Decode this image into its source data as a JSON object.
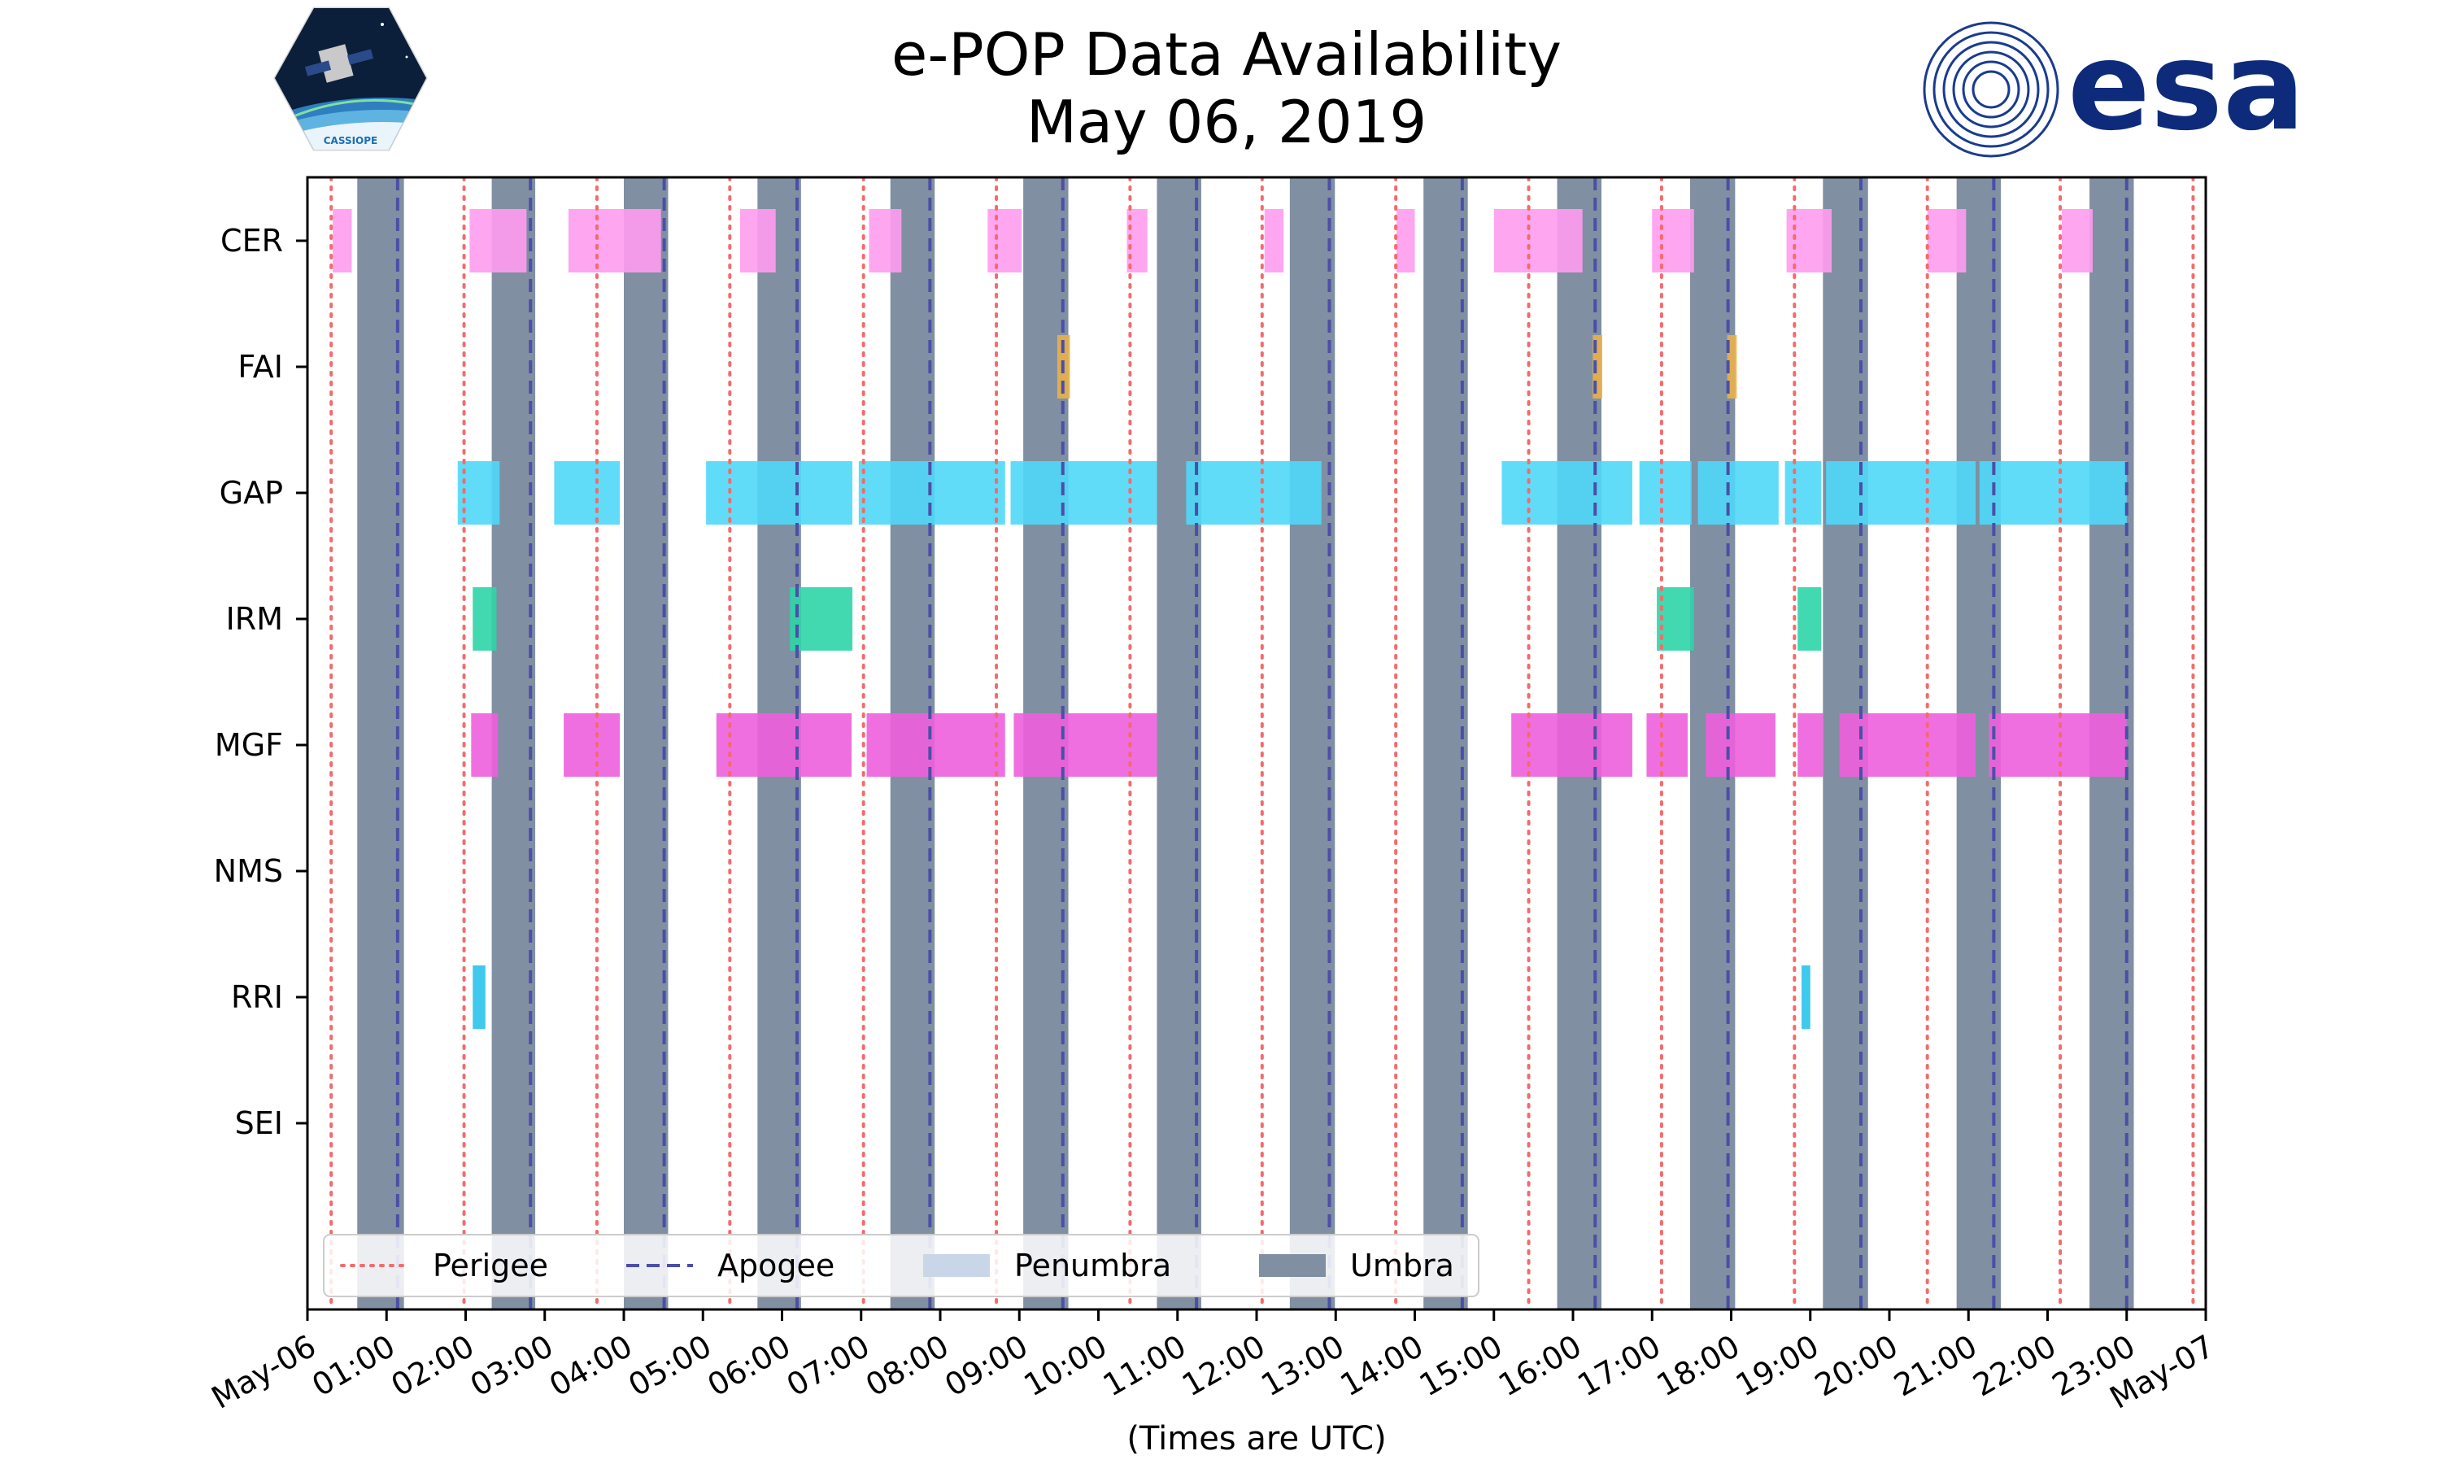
{
  "logos": {
    "mission_caption": "CASSIOPE",
    "agency_wordmark": "esa"
  },
  "colors": {
    "CER": "#ff9cf0",
    "FAI": "#e9b04a",
    "GAP": "#4fd8f8",
    "IRM": "#2dd4a7",
    "MGF": "#ee5fdd",
    "RRI": "#2ac3ea",
    "penumbra": "#c9d6e8",
    "umbra": "#808fa2",
    "perigee": "#f36b6b",
    "apogee": "#4b4fa6"
  },
  "chart_data": {
    "type": "timeline",
    "title": "e-POP Data Availability",
    "subtitle": "May 06, 2019",
    "xlabel": "(Times are UTC)",
    "x_unit": "hours UTC",
    "xlim": [
      0,
      24
    ],
    "x_ticks": [
      {
        "value": 0,
        "label": "May-06"
      },
      {
        "value": 1,
        "label": "01:00"
      },
      {
        "value": 2,
        "label": "02:00"
      },
      {
        "value": 3,
        "label": "03:00"
      },
      {
        "value": 4,
        "label": "04:00"
      },
      {
        "value": 5,
        "label": "05:00"
      },
      {
        "value": 6,
        "label": "06:00"
      },
      {
        "value": 7,
        "label": "07:00"
      },
      {
        "value": 8,
        "label": "08:00"
      },
      {
        "value": 9,
        "label": "09:00"
      },
      {
        "value": 10,
        "label": "10:00"
      },
      {
        "value": 11,
        "label": "11:00"
      },
      {
        "value": 12,
        "label": "12:00"
      },
      {
        "value": 13,
        "label": "13:00"
      },
      {
        "value": 14,
        "label": "14:00"
      },
      {
        "value": 15,
        "label": "15:00"
      },
      {
        "value": 16,
        "label": "16:00"
      },
      {
        "value": 17,
        "label": "17:00"
      },
      {
        "value": 18,
        "label": "18:00"
      },
      {
        "value": 19,
        "label": "19:00"
      },
      {
        "value": 20,
        "label": "20:00"
      },
      {
        "value": 21,
        "label": "21:00"
      },
      {
        "value": 22,
        "label": "22:00"
      },
      {
        "value": 23,
        "label": "23:00"
      },
      {
        "value": 24,
        "label": "May-07"
      }
    ],
    "instruments": [
      "CER",
      "FAI",
      "GAP",
      "IRM",
      "MGF",
      "NMS",
      "RRI",
      "SEI"
    ],
    "series": [
      {
        "name": "CER",
        "intervals": [
          [
            0.32,
            0.56
          ],
          [
            2.05,
            2.77
          ],
          [
            3.3,
            4.47
          ],
          [
            5.47,
            5.92
          ],
          [
            7.1,
            7.51
          ],
          [
            8.6,
            9.03
          ],
          [
            10.36,
            10.62
          ],
          [
            12.1,
            12.34
          ],
          [
            13.77,
            14.0
          ],
          [
            15.0,
            16.12
          ],
          [
            17.0,
            17.53
          ],
          [
            18.7,
            19.27
          ],
          [
            20.48,
            20.97
          ],
          [
            22.18,
            22.57
          ]
        ]
      },
      {
        "name": "FAI",
        "intervals": [
          [
            9.48,
            9.64
          ],
          [
            16.25,
            16.37
          ],
          [
            17.95,
            18.07
          ]
        ]
      },
      {
        "name": "GAP",
        "intervals": [
          [
            1.9,
            2.43
          ],
          [
            3.12,
            3.95
          ],
          [
            5.04,
            6.89
          ],
          [
            6.97,
            8.82
          ],
          [
            8.89,
            10.74
          ],
          [
            11.11,
            12.82
          ],
          [
            15.1,
            16.75
          ],
          [
            16.84,
            17.5
          ],
          [
            17.58,
            18.6
          ],
          [
            18.68,
            19.14
          ],
          [
            19.2,
            21.09
          ],
          [
            21.14,
            23.0
          ]
        ]
      },
      {
        "name": "IRM",
        "intervals": [
          [
            2.09,
            2.39
          ],
          [
            6.1,
            6.89
          ],
          [
            17.06,
            17.53
          ],
          [
            18.84,
            19.14
          ]
        ]
      },
      {
        "name": "MGF",
        "intervals": [
          [
            2.07,
            2.41
          ],
          [
            3.24,
            3.95
          ],
          [
            5.17,
            6.88
          ],
          [
            7.07,
            8.82
          ],
          [
            8.93,
            10.74
          ],
          [
            15.22,
            16.75
          ],
          [
            16.93,
            17.45
          ],
          [
            17.68,
            18.56
          ],
          [
            18.84,
            19.16
          ],
          [
            19.37,
            21.09
          ],
          [
            21.26,
            23.0
          ]
        ]
      },
      {
        "name": "NMS",
        "intervals": []
      },
      {
        "name": "RRI",
        "intervals": [
          [
            2.09,
            2.25
          ],
          [
            18.89,
            19.0
          ]
        ]
      },
      {
        "name": "SEI",
        "intervals": []
      }
    ],
    "umbra": [
      [
        0.63,
        1.22
      ],
      [
        2.33,
        2.88
      ],
      [
        4.0,
        4.56
      ],
      [
        5.69,
        6.24
      ],
      [
        7.37,
        7.93
      ],
      [
        9.05,
        9.62
      ],
      [
        10.74,
        11.3
      ],
      [
        12.42,
        12.99
      ],
      [
        14.11,
        14.67
      ],
      [
        15.8,
        16.36
      ],
      [
        17.48,
        18.05
      ],
      [
        19.16,
        19.73
      ],
      [
        20.85,
        21.41
      ],
      [
        22.53,
        23.09
      ]
    ],
    "perigee": [
      0.3,
      1.98,
      3.66,
      5.34,
      7.03,
      8.71,
      10.4,
      12.07,
      13.76,
      15.44,
      17.12,
      18.8,
      20.48,
      22.16,
      23.84
    ],
    "apogee": [
      1.14,
      2.82,
      4.51,
      6.19,
      7.87,
      9.55,
      11.24,
      12.92,
      14.6,
      16.28,
      17.96,
      19.64,
      21.32,
      23.0
    ],
    "legend": {
      "position": "lower-left",
      "entries": [
        {
          "label": "Perigee",
          "style": "dotted-line",
          "color_key": "perigee"
        },
        {
          "label": "Apogee",
          "style": "dashed-line",
          "color_key": "apogee"
        },
        {
          "label": "Penumbra",
          "style": "patch",
          "color_key": "penumbra"
        },
        {
          "label": "Umbra",
          "style": "patch",
          "color_key": "umbra"
        }
      ]
    }
  }
}
